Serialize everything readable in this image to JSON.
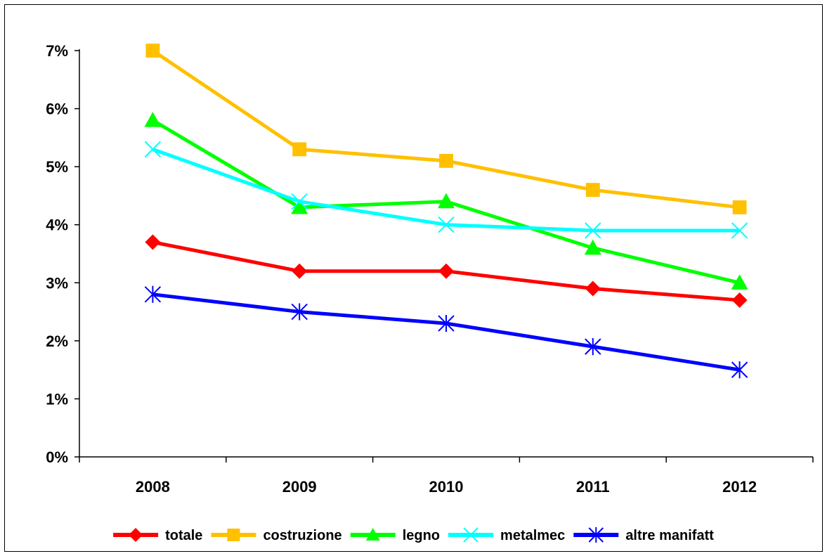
{
  "chart_data": {
    "type": "line",
    "title": "",
    "xlabel": "",
    "ylabel": "",
    "categories": [
      "2008",
      "2009",
      "2010",
      "2011",
      "2012"
    ],
    "ylim": [
      0,
      0.07
    ],
    "yticks": [
      0,
      0.01,
      0.02,
      0.03,
      0.04,
      0.05,
      0.06,
      0.07
    ],
    "ytick_labels": [
      "0%",
      "1%",
      "2%",
      "3%",
      "4%",
      "5%",
      "6%",
      "7%"
    ],
    "grid": false,
    "legend_position": "bottom",
    "series": [
      {
        "name": "totale",
        "color": "#ff0000",
        "marker": "diamond",
        "values": [
          0.037,
          0.032,
          0.032,
          0.029,
          0.027
        ]
      },
      {
        "name": "costruzione",
        "color": "#ffc000",
        "marker": "square",
        "values": [
          0.07,
          0.053,
          0.051,
          0.046,
          0.043
        ]
      },
      {
        "name": "legno",
        "color": "#00ff00",
        "marker": "triangle",
        "values": [
          0.058,
          0.043,
          0.044,
          0.036,
          0.03
        ]
      },
      {
        "name": "metalmec",
        "color": "#00ffff",
        "marker": "x",
        "values": [
          0.053,
          0.044,
          0.04,
          0.039,
          0.039
        ]
      },
      {
        "name": "altre manifatt",
        "color": "#0000ff",
        "marker": "asterisk",
        "values": [
          0.028,
          0.025,
          0.023,
          0.019,
          0.015
        ]
      }
    ]
  }
}
